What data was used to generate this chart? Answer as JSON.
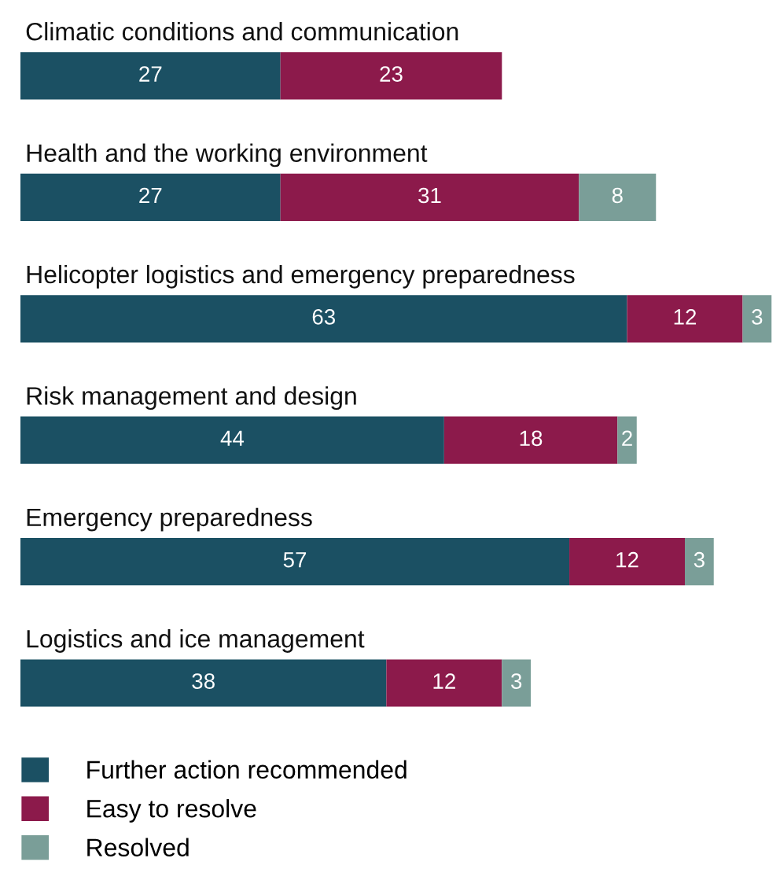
{
  "chart_data": {
    "type": "bar",
    "orientation": "horizontal",
    "stacked": true,
    "data_labels": true,
    "legend": "bottom",
    "categories": [
      "Climatic conditions and communication",
      "Health and the working environment",
      "Helicopter logistics and emergency preparedness",
      "Risk management and design",
      "Emergency preparedness",
      "Logistics and ice management"
    ],
    "series": [
      {
        "name": "Further action recommended",
        "color": "#1b5063",
        "values": [
          27,
          27,
          63,
          44,
          57,
          38
        ]
      },
      {
        "name": "Easy to resolve",
        "color": "#8c1a4b",
        "values": [
          23,
          31,
          12,
          18,
          12,
          12
        ]
      },
      {
        "name": "Resolved",
        "color": "#7a9e98",
        "values": [
          null,
          8,
          3,
          2,
          3,
          3
        ]
      }
    ]
  }
}
